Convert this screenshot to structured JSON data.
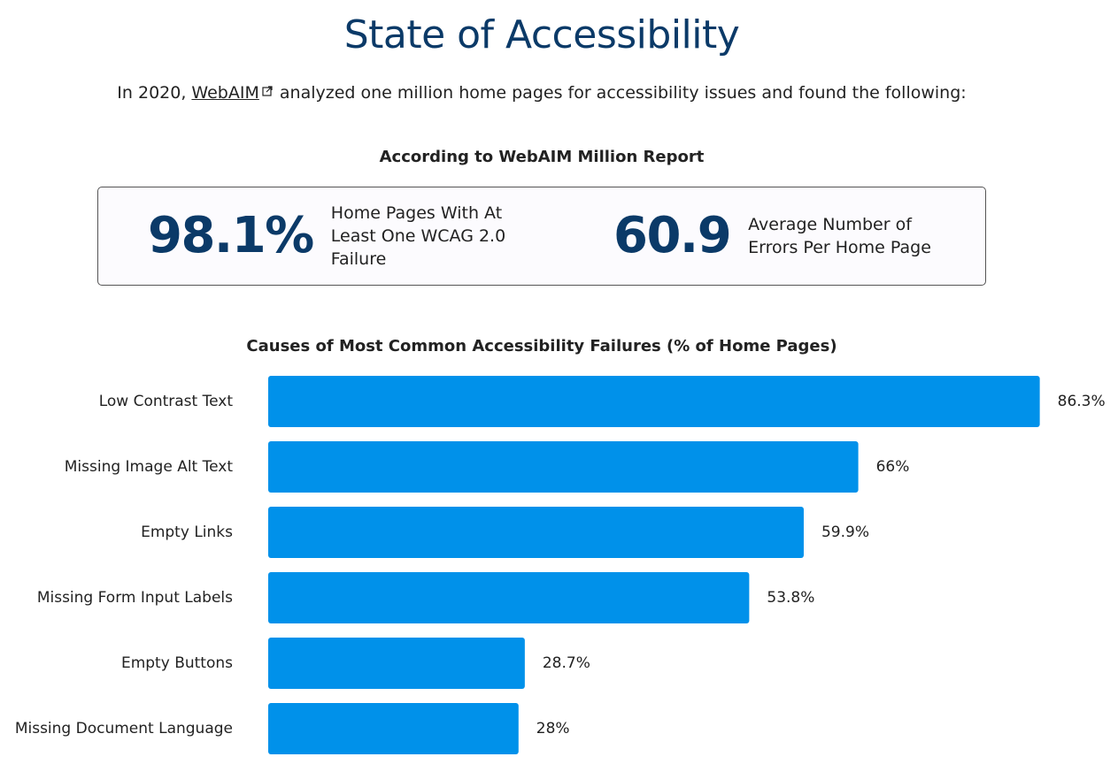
{
  "page": {
    "title": "State of Accessibility"
  },
  "intro": {
    "prefix": "In 2020, ",
    "link_text": "WebAIM",
    "suffix": " analyzed one million home pages for accessibility issues and found the following:"
  },
  "report": {
    "heading": "According to WebAIM Million Report",
    "stats": [
      {
        "value": "98.1%",
        "label": "Home Pages With At Least One WCAG 2.0 Failure"
      },
      {
        "value": "60.9",
        "label": "Average Number of Errors Per Home Page"
      }
    ]
  },
  "colors": {
    "title": "#0b3a68",
    "bar": "#0091ea"
  },
  "icons": {
    "external_link": "external-link-icon"
  },
  "chart_data": {
    "type": "bar",
    "orientation": "horizontal",
    "title": "Causes of Most Common Accessibility Failures (% of Home Pages)",
    "categories": [
      "Low Contrast Text",
      "Missing Image Alt Text",
      "Empty Links",
      "Missing Form Input Labels",
      "Empty Buttons",
      "Missing Document Language"
    ],
    "values": [
      86.3,
      66,
      59.9,
      53.8,
      28.7,
      28
    ],
    "value_labels": [
      "86.3%",
      "66%",
      "59.9%",
      "53.8%",
      "28.7%",
      "28%"
    ],
    "xlim": [
      0,
      100
    ],
    "grid": false,
    "xlabel": "",
    "ylabel": ""
  }
}
